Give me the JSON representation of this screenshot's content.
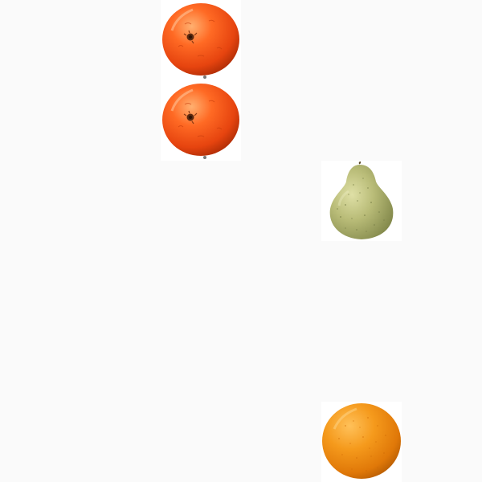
{
  "scene": {
    "background": "#fafafa",
    "tile_background": "#ffffff",
    "items": [
      {
        "icon": "mandarin-icon",
        "kind": "mandarin",
        "color": "#f2581a"
      },
      {
        "icon": "mandarin-icon",
        "kind": "mandarin",
        "color": "#f2581a"
      },
      {
        "icon": "pear-icon",
        "kind": "pear",
        "color": "#b5b873"
      },
      {
        "icon": "orange-icon",
        "kind": "orange",
        "color": "#f08a14"
      }
    ]
  }
}
